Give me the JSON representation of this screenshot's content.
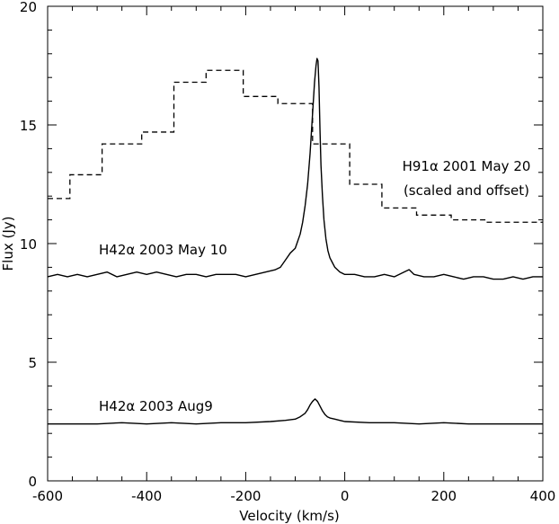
{
  "chart_data": {
    "type": "line",
    "xlabel": "Velocity (km/s)",
    "ylabel": "Flux (Jy)",
    "xlim": [
      -600,
      400
    ],
    "ylim": [
      0,
      20
    ],
    "xticks": [
      -600,
      -400,
      -200,
      0,
      200,
      400
    ],
    "yticks": [
      0,
      5,
      10,
      15,
      20
    ],
    "grid": false,
    "series": [
      {
        "label": "H91α 2001 May 20",
        "label2": "(scaled and offset)",
        "style": "dashed-step",
        "x": [
          -600,
          -555,
          -490,
          -410,
          -345,
          -280,
          -205,
          -135,
          -65,
          10,
          75,
          145,
          215,
          285,
          400
        ],
        "y": [
          11.9,
          12.9,
          14.2,
          14.7,
          16.8,
          17.3,
          16.2,
          15.9,
          14.2,
          12.5,
          11.5,
          11.2,
          11.0,
          10.9,
          11.1
        ]
      },
      {
        "label": "H42α 2003 May 10",
        "style": "solid",
        "x": [
          -600,
          -580,
          -560,
          -540,
          -520,
          -500,
          -480,
          -460,
          -440,
          -420,
          -400,
          -380,
          -360,
          -340,
          -320,
          -300,
          -280,
          -260,
          -240,
          -220,
          -200,
          -180,
          -160,
          -140,
          -130,
          -120,
          -110,
          -100,
          -95,
          -90,
          -85,
          -80,
          -75,
          -70,
          -67,
          -64,
          -61,
          -58,
          -56,
          -54,
          -52,
          -50,
          -48,
          -45,
          -42,
          -38,
          -34,
          -30,
          -25,
          -20,
          -10,
          0,
          20,
          40,
          60,
          80,
          100,
          120,
          130,
          140,
          160,
          180,
          200,
          220,
          240,
          260,
          280,
          300,
          320,
          340,
          360,
          380,
          400
        ],
        "y": [
          8.6,
          8.7,
          8.6,
          8.7,
          8.6,
          8.7,
          8.8,
          8.6,
          8.7,
          8.8,
          8.7,
          8.8,
          8.7,
          8.6,
          8.7,
          8.7,
          8.6,
          8.7,
          8.7,
          8.7,
          8.6,
          8.7,
          8.8,
          8.9,
          9.0,
          9.3,
          9.6,
          9.8,
          10.1,
          10.4,
          10.9,
          11.6,
          12.5,
          13.8,
          14.8,
          15.8,
          16.8,
          17.5,
          17.8,
          17.7,
          16.6,
          14.8,
          13.3,
          12.0,
          11.0,
          10.2,
          9.7,
          9.4,
          9.2,
          9.0,
          8.8,
          8.7,
          8.7,
          8.6,
          8.6,
          8.7,
          8.6,
          8.8,
          8.9,
          8.7,
          8.6,
          8.6,
          8.7,
          8.6,
          8.5,
          8.6,
          8.6,
          8.5,
          8.5,
          8.6,
          8.5,
          8.6,
          8.6
        ]
      },
      {
        "label": "H42α 2003 Aug9",
        "style": "solid",
        "x": [
          -600,
          -550,
          -500,
          -450,
          -400,
          -350,
          -300,
          -250,
          -200,
          -150,
          -120,
          -100,
          -90,
          -80,
          -75,
          -70,
          -65,
          -60,
          -55,
          -50,
          -45,
          -40,
          -35,
          -30,
          -20,
          -10,
          0,
          50,
          100,
          150,
          200,
          250,
          300,
          350,
          400
        ],
        "y": [
          2.4,
          2.4,
          2.4,
          2.45,
          2.4,
          2.45,
          2.4,
          2.45,
          2.45,
          2.5,
          2.55,
          2.6,
          2.7,
          2.85,
          3.0,
          3.2,
          3.35,
          3.45,
          3.35,
          3.15,
          2.95,
          2.8,
          2.7,
          2.65,
          2.6,
          2.55,
          2.5,
          2.45,
          2.45,
          2.4,
          2.45,
          2.4,
          2.4,
          2.4,
          2.4
        ]
      }
    ]
  }
}
